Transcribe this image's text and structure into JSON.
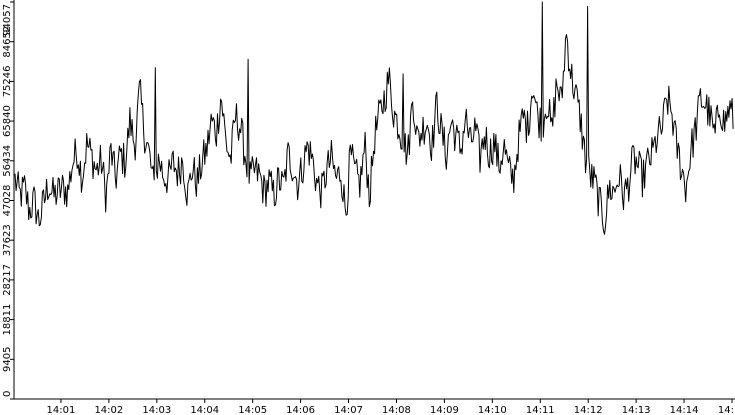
{
  "chart_data": {
    "type": "line",
    "title": "",
    "xlabel": "",
    "ylabel": "",
    "x_ticks": [
      "14:01",
      "14:02",
      "14:03",
      "14:04",
      "14:05",
      "14:06",
      "14:07",
      "14:08",
      "14:09",
      "14:10",
      "14:11",
      "14:12",
      "14:13",
      "14:14",
      "14:"
    ],
    "y_ticks": [
      "0",
      "9405",
      "18811",
      "28217",
      "37623",
      "47028",
      "56434",
      "65840",
      "75246",
      "84652",
      "94057"
    ],
    "ylim": [
      0,
      94057
    ],
    "x_unit": "minutes after 14:00",
    "xlim": [
      0.0,
      15.0
    ],
    "grid": false,
    "legend": "none",
    "colors": {
      "line": "#000000",
      "axis": "#000000",
      "background": "#ffffff"
    },
    "series": [
      {
        "x": [
          0.0,
          0.1,
          0.2,
          0.3,
          0.4,
          0.5,
          0.6,
          0.7,
          0.8,
          0.9,
          1.0,
          1.1,
          1.2,
          1.3,
          1.4,
          1.5,
          1.6,
          1.7,
          1.8,
          1.9,
          2.0,
          2.1,
          2.2,
          2.3,
          2.4,
          2.5,
          2.6,
          2.7,
          2.8,
          2.9,
          3.0,
          3.1,
          3.2,
          3.3,
          3.4,
          3.5,
          3.6,
          3.7,
          3.8,
          3.9,
          4.0,
          4.1,
          4.2,
          4.3,
          4.4,
          4.5,
          4.6,
          4.7,
          4.8,
          4.9,
          5.0,
          5.1,
          5.2,
          5.3,
          5.4,
          5.5,
          5.6,
          5.7,
          5.8,
          5.9,
          6.0,
          6.1,
          6.2,
          6.3,
          6.4,
          6.5,
          6.6,
          6.7,
          6.8,
          6.9,
          7.0,
          7.1,
          7.2,
          7.3,
          7.4,
          7.5,
          7.6,
          7.7,
          7.8,
          7.9,
          8.0,
          8.1,
          8.2,
          8.3,
          8.4,
          8.5,
          8.6,
          8.7,
          8.8,
          8.9,
          9.0,
          9.1,
          9.2,
          9.3,
          9.4,
          9.5,
          9.6,
          9.7,
          9.8,
          9.9,
          10.0,
          10.1,
          10.2,
          10.3,
          10.4,
          10.5,
          10.6,
          10.7,
          10.8,
          10.9,
          11.0,
          11.1,
          11.2,
          11.3,
          11.4,
          11.5,
          11.6,
          11.7,
          11.8,
          11.9,
          12.0,
          12.1,
          12.2,
          12.3,
          12.4,
          12.5,
          12.6,
          12.7,
          12.8,
          12.9,
          13.0,
          13.1,
          13.2,
          13.3,
          13.4,
          13.5,
          13.6,
          13.7,
          13.8,
          13.9,
          14.0,
          14.1,
          14.2,
          14.3,
          14.4,
          14.5,
          14.6,
          14.7,
          14.8,
          14.9,
          15.0
        ],
        "values": [
          52000,
          48000,
          50000,
          44500,
          47000,
          42000,
          46500,
          51000,
          48000,
          49000,
          50000,
          49000,
          56000,
          59000,
          52500,
          60500,
          57500,
          54000,
          56500,
          48000,
          59000,
          52000,
          58000,
          56000,
          66000,
          60000,
          73000,
          63000,
          58000,
          50000,
          57000,
          53000,
          52000,
          56000,
          53500,
          57000,
          48000,
          55000,
          51000,
          56000,
          59000,
          66000,
          63000,
          72000,
          61000,
          56500,
          67000,
          64500,
          58000,
          52000,
          54000,
          53000,
          49000,
          51500,
          48000,
          52000,
          50000,
          58000,
          55000,
          51000,
          55000,
          60000,
          57000,
          51000,
          49000,
          54000,
          57000,
          52000,
          54000,
          44000,
          58000,
          53000,
          51000,
          60000,
          48000,
          62000,
          67000,
          71000,
          76000,
          68000,
          65000,
          61000,
          58000,
          72000,
          61000,
          64000,
          66000,
          60000,
          70000,
          63000,
          58000,
          66000,
          62000,
          59000,
          67000,
          60000,
          64000,
          57000,
          63000,
          58000,
          61000,
          55000,
          60000,
          54000,
          52000,
          61000,
          67000,
          64000,
          75000,
          67000,
          65000,
          71000,
          63000,
          75000,
          70000,
          87000,
          77000,
          72000,
          66000,
          57000,
          53000,
          51000,
          46000,
          42000,
          50000,
          49000,
          53000,
          48000,
          51000,
          57000,
          55000,
          52000,
          56000,
          58000,
          62000,
          64000,
          71000,
          68000,
          60000,
          55000,
          50000,
          59000,
          64000,
          71000,
          70000,
          67000,
          62000,
          70000,
          65000,
          69000,
          66000
        ],
        "events": [
          {
            "x": 11.0,
            "value": 94057
          },
          {
            "x": 11.95,
            "value": 93000
          },
          {
            "x": 8.1,
            "value": 77000
          },
          {
            "x": 2.92,
            "value": 78500
          },
          {
            "x": 4.87,
            "value": 80500
          }
        ]
      }
    ]
  }
}
